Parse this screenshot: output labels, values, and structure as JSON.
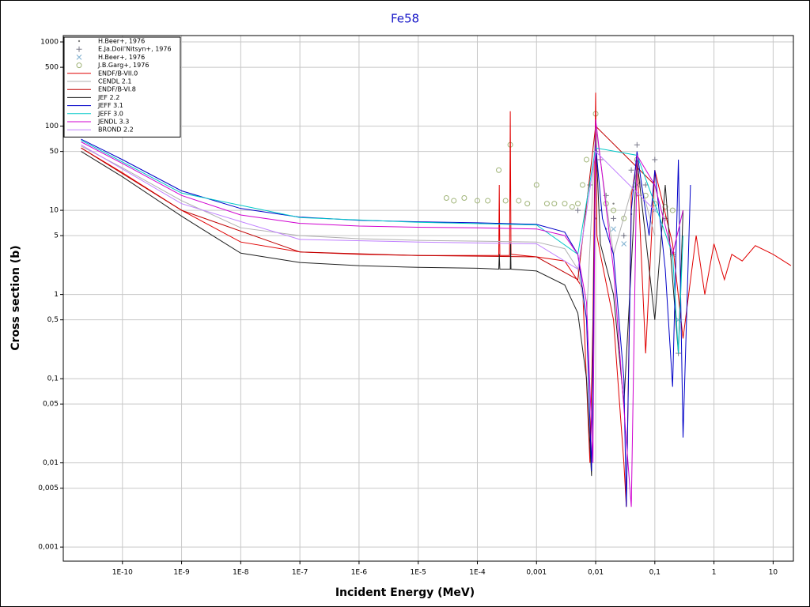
{
  "chart_data": {
    "type": "line",
    "title": "Fe58",
    "x_label": "Incident Energy (MeV)",
    "y_label": "Cross section (b)",
    "log_x": true,
    "log_y": true,
    "grid": true,
    "legend": "upper left",
    "xlim": [
      1e-11,
      22
    ],
    "ylim": [
      0.00068,
      1190
    ],
    "xticks": [
      {
        "value": 1e-10,
        "label": "1E-10"
      },
      {
        "value": 1e-09,
        "label": "1E-9"
      },
      {
        "value": 1e-08,
        "label": "1E-8"
      },
      {
        "value": 1e-07,
        "label": "1E-7"
      },
      {
        "value": 1e-06,
        "label": "1E-6"
      },
      {
        "value": 1e-05,
        "label": "1E-5"
      },
      {
        "value": 0.0001,
        "label": "1E-4"
      },
      {
        "value": 0.001,
        "label": "0,001"
      },
      {
        "value": 0.01,
        "label": "0,01"
      },
      {
        "value": 0.1,
        "label": "0,1"
      },
      1,
      10
    ],
    "yticks": [
      {
        "value": 0.001,
        "label": "0,001"
      },
      {
        "value": 0.005,
        "label": "0,005"
      },
      {
        "value": 0.01,
        "label": "0,01"
      },
      {
        "value": 0.05,
        "label": "0,05"
      },
      {
        "value": 0.1,
        "label": "0,1"
      },
      {
        "value": 0.5,
        "label": "0,5"
      },
      1,
      5,
      10,
      50,
      100,
      500,
      1000
    ],
    "series": [
      {
        "name": "H.Beer+, 1976",
        "color": "#808080",
        "marker": "dot",
        "x": [
          0.01,
          0.012,
          0.015,
          0.02,
          0.03,
          0.04,
          0.05
        ],
        "values": [
          8,
          10,
          6,
          12,
          5,
          9,
          15
        ]
      },
      {
        "name": "E.Ja.Doil'Nitsyn+, 1976",
        "color": "#7a7a8a",
        "marker": "plus",
        "x": [
          0.005,
          0.008,
          0.01,
          0.012,
          0.015,
          0.02,
          0.03,
          0.04,
          0.05,
          0.07,
          0.1,
          0.15,
          0.2,
          0.25
        ],
        "values": [
          10,
          20,
          50,
          40,
          15,
          8,
          5,
          30,
          60,
          20,
          40,
          8,
          3,
          0.2
        ]
      },
      {
        "name": "H.Beer+, 1976",
        "color": "#80b0d0",
        "marker": "cross",
        "x": [
          0.02,
          0.03,
          0.05,
          0.1,
          0.2,
          0.25
        ],
        "values": [
          6,
          4,
          20,
          10,
          3,
          0.5
        ]
      },
      {
        "name": "J.B.Garg+, 1976",
        "color": "#a0b478",
        "marker": "circle",
        "x": [
          3e-05,
          4e-05,
          6e-05,
          0.0001,
          0.00015,
          0.00023,
          0.0003,
          0.00036,
          0.0005,
          0.0007,
          0.001,
          0.0015,
          0.002,
          0.003,
          0.004,
          0.005,
          0.006,
          0.007,
          0.01,
          0.015,
          0.02,
          0.03,
          0.05,
          0.07,
          0.1,
          0.15,
          0.2
        ],
        "values": [
          14,
          13,
          14,
          13,
          13,
          30,
          13,
          60,
          13,
          12,
          20,
          12,
          12,
          12,
          11,
          12,
          20,
          40,
          140,
          12,
          10,
          8,
          40,
          15,
          12,
          11,
          10
        ]
      },
      {
        "name": "ENDF/B-VII.0",
        "color": "#e00000",
        "x": [
          2e-11,
          1e-10,
          1e-09,
          1e-08,
          1e-07,
          1e-06,
          1e-05,
          0.0001,
          0.00023,
          0.000235,
          0.00024,
          0.00035,
          0.00036,
          0.00037,
          0.001,
          0.003,
          0.006,
          0.008,
          0.009,
          0.01,
          0.0105,
          0.012,
          0.02,
          0.03,
          0.033,
          0.04,
          0.05,
          0.07,
          0.1,
          0.2,
          0.3,
          0.5,
          0.7,
          1,
          1.5,
          2,
          3,
          5,
          10,
          20
        ],
        "values": [
          55,
          28,
          10,
          4.2,
          3.2,
          3.0,
          2.9,
          2.9,
          2.9,
          20,
          2.9,
          2.9,
          150,
          3,
          2.8,
          2.5,
          1.2,
          0.01,
          0.5,
          250,
          5,
          3,
          0.5,
          0.01,
          0.003,
          15,
          40,
          0.2,
          30,
          4,
          0.3,
          5,
          1,
          4,
          1.5,
          3,
          2.5,
          3.8,
          3,
          2.2
        ]
      },
      {
        "name": "CENDL 2.1",
        "color": "#b0b0b0",
        "x": [
          2e-11,
          1e-10,
          1e-09,
          1e-08,
          1e-07,
          1e-06,
          1e-05,
          0.0001,
          0.001,
          0.003,
          0.005,
          0.007,
          0.01,
          0.02,
          0.05,
          0.1
        ],
        "values": [
          58,
          32,
          13,
          6.2,
          5,
          4.6,
          4.4,
          4.3,
          4.2,
          3.5,
          2,
          0.5,
          100,
          3,
          30,
          5
        ]
      },
      {
        "name": "ENDF/B-VI.8",
        "color": "#c00000",
        "x": [
          2e-11,
          1e-09,
          1e-07,
          1e-05,
          0.001,
          0.005,
          0.01,
          0.1
        ],
        "values": [
          55,
          10,
          3.2,
          2.9,
          2.8,
          1.5,
          100,
          20
        ]
      },
      {
        "name": "JEF 2.2",
        "color": "#202020",
        "x": [
          2e-11,
          1e-10,
          1e-09,
          1e-08,
          1e-07,
          1e-06,
          1e-05,
          0.0001,
          0.00023,
          0.000235,
          0.00024,
          0.00036,
          0.000365,
          0.00037,
          0.001,
          0.003,
          0.005,
          0.007,
          0.0085,
          0.01,
          0.012,
          0.02,
          0.03,
          0.05,
          0.1,
          0.15,
          0.25,
          0.3
        ],
        "values": [
          50,
          25,
          8.5,
          3.1,
          2.4,
          2.2,
          2.1,
          2.05,
          2.0,
          3,
          2.0,
          2.0,
          4,
          2.0,
          1.9,
          1.3,
          0.6,
          0.1,
          0.007,
          80,
          4,
          1,
          0.05,
          40,
          0.5,
          20,
          0.2,
          10
        ]
      },
      {
        "name": "JEFF 3.1",
        "color": "#0000c8",
        "x": [
          2e-11,
          1e-10,
          1e-09,
          1e-08,
          1e-07,
          1e-06,
          1e-05,
          0.0001,
          0.001,
          0.003,
          0.005,
          0.007,
          0.0085,
          0.01,
          0.013,
          0.02,
          0.03,
          0.033,
          0.04,
          0.05,
          0.06,
          0.08,
          0.1,
          0.15,
          0.2,
          0.25,
          0.3,
          0.4
        ],
        "values": [
          70,
          40,
          17,
          10.5,
          8.3,
          7.6,
          7.3,
          7.1,
          6.8,
          5.5,
          3,
          0.5,
          0.008,
          60,
          8,
          3,
          0.1,
          0.003,
          10,
          50,
          20,
          5,
          30,
          2,
          0.08,
          40,
          0.02,
          20
        ]
      },
      {
        "name": "JEFF 3.0",
        "color": "#00c8c8",
        "x": [
          2e-11,
          1e-09,
          1e-07,
          1e-05,
          0.001,
          0.005,
          0.01,
          0.05,
          0.1,
          0.2,
          0.25,
          0.3
        ],
        "values": [
          68,
          16,
          8.2,
          7.2,
          6.7,
          3,
          55,
          45,
          12,
          3,
          0.2,
          5
        ]
      },
      {
        "name": "JENDL 3.3",
        "color": "#d000d0",
        "x": [
          2e-11,
          1e-10,
          1e-09,
          1e-08,
          1e-07,
          1e-06,
          1e-05,
          0.0001,
          0.001,
          0.003,
          0.005,
          0.007,
          0.009,
          0.01,
          0.02,
          0.04,
          0.05,
          0.1,
          0.2,
          0.3
        ],
        "values": [
          65,
          36,
          15,
          8.8,
          7,
          6.5,
          6.3,
          6.2,
          6,
          5,
          3,
          0.8,
          0.01,
          120,
          2,
          0.003,
          45,
          20,
          3,
          10
        ]
      },
      {
        "name": "BROND 2.2",
        "color": "#c080ff",
        "x": [
          2e-11,
          1e-09,
          1e-07,
          1e-05,
          0.001,
          0.005,
          0.01,
          0.1
        ],
        "values": [
          60,
          12,
          4.5,
          4.2,
          4,
          2,
          50,
          10
        ]
      }
    ]
  }
}
